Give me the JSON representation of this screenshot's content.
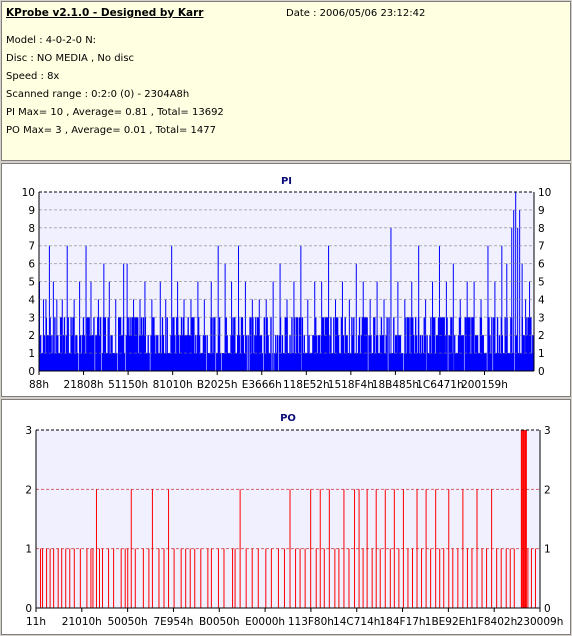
{
  "info": {
    "title": "KProbe v2.1.0 - Designed by Karr",
    "date": "Date : 2006/05/06 23:12:42",
    "model": "Model : 4-0-2-0 N:",
    "disc": "Disc : NO MEDIA , No disc",
    "speed": "Speed : 8x",
    "range": "Scanned range : 0:2:0 (0) - 2304A8h",
    "pi": "PI Max= 10 , Average= 0.81 , Total= 13692",
    "po": "PO Max= 3 , Average= 0.01 , Total= 1477"
  },
  "chart_data": [
    {
      "type": "bar",
      "title": "PI",
      "ylim": [
        0,
        10
      ],
      "y_ticks": [
        "0",
        "1",
        "2",
        "3",
        "4",
        "5",
        "6",
        "7",
        "8",
        "9",
        "10"
      ],
      "x_tick_labels": [
        "88h",
        "21808h",
        "51150h",
        "81010h",
        "B2025h",
        "E3666h",
        "118E52h",
        "1518F4h",
        "18B485h",
        "1C6471h",
        "200159h"
      ],
      "color": "#0000ff",
      "grid": true,
      "baseline_range": [
        1,
        3
      ],
      "spikes": [
        {
          "x": 0.0,
          "v": 5
        },
        {
          "x": 0.008,
          "v": 4
        },
        {
          "x": 0.013,
          "v": 4
        },
        {
          "x": 0.02,
          "v": 7
        },
        {
          "x": 0.028,
          "v": 5
        },
        {
          "x": 0.035,
          "v": 4
        },
        {
          "x": 0.046,
          "v": 4
        },
        {
          "x": 0.056,
          "v": 7
        },
        {
          "x": 0.07,
          "v": 4
        },
        {
          "x": 0.081,
          "v": 5
        },
        {
          "x": 0.094,
          "v": 7
        },
        {
          "x": 0.104,
          "v": 5
        },
        {
          "x": 0.119,
          "v": 4
        },
        {
          "x": 0.13,
          "v": 6
        },
        {
          "x": 0.141,
          "v": 5
        },
        {
          "x": 0.154,
          "v": 4
        },
        {
          "x": 0.17,
          "v": 6
        },
        {
          "x": 0.177,
          "v": 6
        },
        {
          "x": 0.19,
          "v": 4
        },
        {
          "x": 0.203,
          "v": 4
        },
        {
          "x": 0.213,
          "v": 5
        },
        {
          "x": 0.227,
          "v": 4
        },
        {
          "x": 0.244,
          "v": 5
        },
        {
          "x": 0.255,
          "v": 4
        },
        {
          "x": 0.267,
          "v": 7
        },
        {
          "x": 0.279,
          "v": 5
        },
        {
          "x": 0.292,
          "v": 4
        },
        {
          "x": 0.306,
          "v": 4
        },
        {
          "x": 0.32,
          "v": 5
        },
        {
          "x": 0.333,
          "v": 4
        },
        {
          "x": 0.347,
          "v": 5
        },
        {
          "x": 0.361,
          "v": 7
        },
        {
          "x": 0.375,
          "v": 6
        },
        {
          "x": 0.388,
          "v": 5
        },
        {
          "x": 0.402,
          "v": 7
        },
        {
          "x": 0.416,
          "v": 5
        },
        {
          "x": 0.43,
          "v": 4
        },
        {
          "x": 0.444,
          "v": 4
        },
        {
          "x": 0.458,
          "v": 4
        },
        {
          "x": 0.472,
          "v": 5
        },
        {
          "x": 0.486,
          "v": 6
        },
        {
          "x": 0.5,
          "v": 4
        },
        {
          "x": 0.514,
          "v": 5
        },
        {
          "x": 0.528,
          "v": 7
        },
        {
          "x": 0.542,
          "v": 4
        },
        {
          "x": 0.556,
          "v": 5
        },
        {
          "x": 0.57,
          "v": 5
        },
        {
          "x": 0.584,
          "v": 7
        },
        {
          "x": 0.598,
          "v": 4
        },
        {
          "x": 0.612,
          "v": 5
        },
        {
          "x": 0.626,
          "v": 4
        },
        {
          "x": 0.64,
          "v": 6
        },
        {
          "x": 0.654,
          "v": 5
        },
        {
          "x": 0.668,
          "v": 4
        },
        {
          "x": 0.682,
          "v": 5
        },
        {
          "x": 0.696,
          "v": 4
        },
        {
          "x": 0.71,
          "v": 8
        },
        {
          "x": 0.724,
          "v": 5
        },
        {
          "x": 0.738,
          "v": 4
        },
        {
          "x": 0.752,
          "v": 5
        },
        {
          "x": 0.766,
          "v": 7
        },
        {
          "x": 0.78,
          "v": 4
        },
        {
          "x": 0.794,
          "v": 5
        },
        {
          "x": 0.808,
          "v": 7
        },
        {
          "x": 0.822,
          "v": 5
        },
        {
          "x": 0.836,
          "v": 6
        },
        {
          "x": 0.85,
          "v": 4
        },
        {
          "x": 0.864,
          "v": 5
        },
        {
          "x": 0.878,
          "v": 5
        },
        {
          "x": 0.892,
          "v": 4
        },
        {
          "x": 0.906,
          "v": 7
        },
        {
          "x": 0.92,
          "v": 5
        },
        {
          "x": 0.934,
          "v": 7
        },
        {
          "x": 0.944,
          "v": 6
        },
        {
          "x": 0.954,
          "v": 8
        },
        {
          "x": 0.958,
          "v": 9
        },
        {
          "x": 0.962,
          "v": 10
        },
        {
          "x": 0.966,
          "v": 8
        },
        {
          "x": 0.97,
          "v": 9
        },
        {
          "x": 0.975,
          "v": 6
        },
        {
          "x": 0.982,
          "v": 4
        },
        {
          "x": 0.99,
          "v": 5
        }
      ]
    },
    {
      "type": "bar",
      "title": "PO",
      "ylim": [
        0,
        3
      ],
      "y_ticks": [
        "0",
        "1",
        "2",
        "3"
      ],
      "x_tick_labels": [
        "11h",
        "21010h",
        "50050h",
        "7E954h",
        "B0050h",
        "E0000h",
        "113F80h",
        "14C714h",
        "184F17h",
        "1BE92Eh",
        "1F8402h",
        "230009h"
      ],
      "color": "#ff0000",
      "grid": true,
      "bars": [
        {
          "x": 0.008,
          "v": 1
        },
        {
          "x": 0.012,
          "v": 1
        },
        {
          "x": 0.02,
          "v": 1
        },
        {
          "x": 0.027,
          "v": 1
        },
        {
          "x": 0.034,
          "v": 1
        },
        {
          "x": 0.043,
          "v": 1
        },
        {
          "x": 0.05,
          "v": 1
        },
        {
          "x": 0.058,
          "v": 1
        },
        {
          "x": 0.066,
          "v": 1
        },
        {
          "x": 0.075,
          "v": 1
        },
        {
          "x": 0.087,
          "v": 1
        },
        {
          "x": 0.1,
          "v": 1
        },
        {
          "x": 0.108,
          "v": 1
        },
        {
          "x": 0.112,
          "v": 1
        },
        {
          "x": 0.119,
          "v": 2
        },
        {
          "x": 0.125,
          "v": 1
        },
        {
          "x": 0.131,
          "v": 1
        },
        {
          "x": 0.143,
          "v": 1
        },
        {
          "x": 0.153,
          "v": 1
        },
        {
          "x": 0.168,
          "v": 1
        },
        {
          "x": 0.176,
          "v": 1
        },
        {
          "x": 0.181,
          "v": 1
        },
        {
          "x": 0.188,
          "v": 2
        },
        {
          "x": 0.196,
          "v": 1
        },
        {
          "x": 0.212,
          "v": 1
        },
        {
          "x": 0.223,
          "v": 1
        },
        {
          "x": 0.23,
          "v": 2
        },
        {
          "x": 0.243,
          "v": 1
        },
        {
          "x": 0.253,
          "v": 1
        },
        {
          "x": 0.262,
          "v": 2
        },
        {
          "x": 0.273,
          "v": 1
        },
        {
          "x": 0.287,
          "v": 1
        },
        {
          "x": 0.296,
          "v": 1
        },
        {
          "x": 0.305,
          "v": 1
        },
        {
          "x": 0.314,
          "v": 1
        },
        {
          "x": 0.326,
          "v": 1
        },
        {
          "x": 0.34,
          "v": 1
        },
        {
          "x": 0.347,
          "v": 1
        },
        {
          "x": 0.361,
          "v": 1
        },
        {
          "x": 0.372,
          "v": 1
        },
        {
          "x": 0.389,
          "v": 1
        },
        {
          "x": 0.394,
          "v": 1
        },
        {
          "x": 0.404,
          "v": 2
        },
        {
          "x": 0.416,
          "v": 1
        },
        {
          "x": 0.428,
          "v": 1
        },
        {
          "x": 0.44,
          "v": 1
        },
        {
          "x": 0.455,
          "v": 1
        },
        {
          "x": 0.466,
          "v": 1
        },
        {
          "x": 0.48,
          "v": 1
        },
        {
          "x": 0.492,
          "v": 1
        },
        {
          "x": 0.503,
          "v": 2
        },
        {
          "x": 0.514,
          "v": 1
        },
        {
          "x": 0.523,
          "v": 1
        },
        {
          "x": 0.533,
          "v": 1
        },
        {
          "x": 0.544,
          "v": 2
        },
        {
          "x": 0.555,
          "v": 1
        },
        {
          "x": 0.563,
          "v": 2
        },
        {
          "x": 0.571,
          "v": 1
        },
        {
          "x": 0.581,
          "v": 2
        },
        {
          "x": 0.592,
          "v": 1
        },
        {
          "x": 0.6,
          "v": 1
        },
        {
          "x": 0.61,
          "v": 2
        },
        {
          "x": 0.62,
          "v": 1
        },
        {
          "x": 0.631,
          "v": 2
        },
        {
          "x": 0.64,
          "v": 2
        },
        {
          "x": 0.648,
          "v": 1
        },
        {
          "x": 0.656,
          "v": 2
        },
        {
          "x": 0.666,
          "v": 1
        },
        {
          "x": 0.674,
          "v": 2
        },
        {
          "x": 0.682,
          "v": 1
        },
        {
          "x": 0.692,
          "v": 2
        },
        {
          "x": 0.702,
          "v": 1
        },
        {
          "x": 0.71,
          "v": 2
        },
        {
          "x": 0.719,
          "v": 1
        },
        {
          "x": 0.728,
          "v": 2
        },
        {
          "x": 0.737,
          "v": 1
        },
        {
          "x": 0.746,
          "v": 1
        },
        {
          "x": 0.755,
          "v": 2
        },
        {
          "x": 0.764,
          "v": 1
        },
        {
          "x": 0.773,
          "v": 2
        },
        {
          "x": 0.782,
          "v": 1
        },
        {
          "x": 0.792,
          "v": 2
        },
        {
          "x": 0.8,
          "v": 1
        },
        {
          "x": 0.808,
          "v": 1
        },
        {
          "x": 0.818,
          "v": 2
        },
        {
          "x": 0.826,
          "v": 1
        },
        {
          "x": 0.836,
          "v": 1
        },
        {
          "x": 0.846,
          "v": 2
        },
        {
          "x": 0.855,
          "v": 1
        },
        {
          "x": 0.864,
          "v": 1
        },
        {
          "x": 0.874,
          "v": 2
        },
        {
          "x": 0.884,
          "v": 1
        },
        {
          "x": 0.893,
          "v": 1
        },
        {
          "x": 0.903,
          "v": 2
        },
        {
          "x": 0.913,
          "v": 1
        },
        {
          "x": 0.922,
          "v": 1
        },
        {
          "x": 0.932,
          "v": 1
        },
        {
          "x": 0.94,
          "v": 1
        },
        {
          "x": 0.948,
          "v": 1
        },
        {
          "x": 0.962,
          "v": 3
        },
        {
          "x": 0.966,
          "v": 3
        },
        {
          "x": 0.97,
          "v": 3
        },
        {
          "x": 0.975,
          "v": 1
        },
        {
          "x": 0.982,
          "v": 1
        },
        {
          "x": 0.99,
          "v": 1
        }
      ]
    }
  ]
}
